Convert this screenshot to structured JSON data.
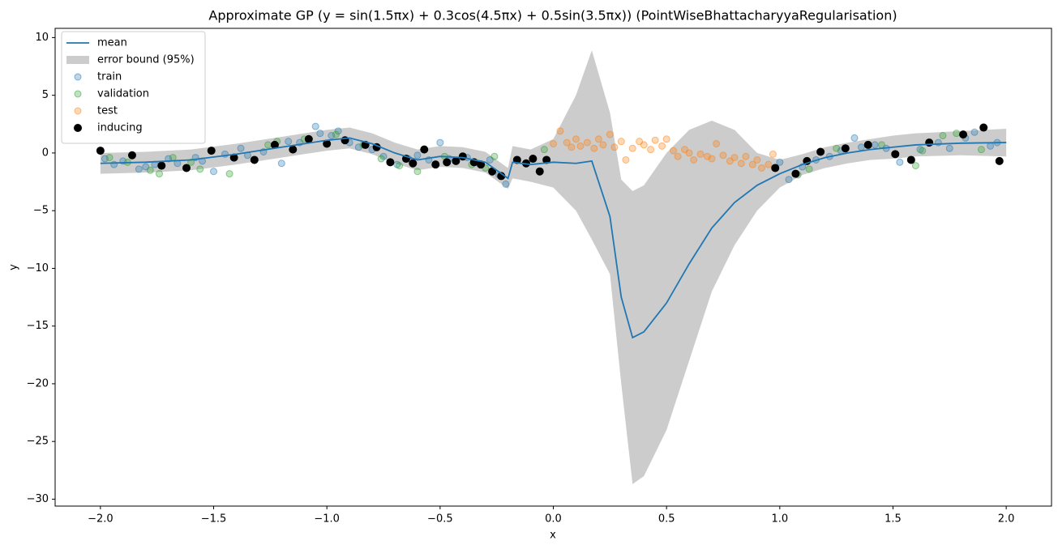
{
  "chart_data": {
    "type": "line",
    "title": "Approximate GP (y = sin(1.5πx) + 0.3cos(4.5πx) + 0.5sin(3.5πx)) (PointWiseBhattacharyyaRegularisation)",
    "x_label": "x",
    "y_label": "y",
    "xlim": [
      -2.2,
      2.2
    ],
    "ylim": [
      -30.6,
      10.8
    ],
    "xticks": [
      {
        "value": -2,
        "label": "−2.0"
      },
      {
        "value": -1.5,
        "label": "−1.5"
      },
      {
        "value": -1,
        "label": "−1.0"
      },
      {
        "value": -0.5,
        "label": "−0.5"
      },
      {
        "value": 0,
        "label": "0.0"
      },
      0.5,
      {
        "value": 1,
        "label": "1.0"
      },
      1.5,
      {
        "value": 2,
        "label": "2.0"
      }
    ],
    "yticks": [
      10,
      5,
      0,
      {
        "value": -5,
        "label": "−5"
      },
      {
        "value": -10,
        "label": "−10"
      },
      {
        "value": -15,
        "label": "−15"
      },
      {
        "value": -20,
        "label": "−20"
      },
      {
        "value": -25,
        "label": "−25"
      },
      {
        "value": -30,
        "label": "−30"
      }
    ],
    "grid": false,
    "legend": "upper left",
    "series": [
      {
        "name": "mean",
        "type": "line",
        "color": "#1f77b4",
        "x": [
          -2,
          -1.8,
          -1.6,
          -1.4,
          -1.2,
          -1.0,
          -0.9,
          -0.8,
          -0.7,
          -0.6,
          -0.5,
          -0.4,
          -0.3,
          -0.2,
          -0.18,
          -0.1,
          0,
          0.1,
          0.17,
          0.25,
          0.3,
          0.35,
          0.4,
          0.5,
          0.6,
          0.7,
          0.8,
          0.9,
          1.0,
          1.1,
          1.2,
          1.3,
          1.4,
          1.5,
          1.6,
          1.8,
          2.0
        ],
        "values": [
          -0.9,
          -0.8,
          -0.6,
          -0.1,
          0.5,
          1.1,
          1.3,
          0.8,
          0.0,
          -0.6,
          -0.3,
          -0.4,
          -0.8,
          -2.2,
          -0.8,
          -1.0,
          -0.8,
          -0.9,
          -0.7,
          -5.5,
          -12.5,
          -16,
          -15.5,
          -13,
          -9.6,
          -6.5,
          -4.3,
          -2.8,
          -1.8,
          -1.0,
          -0.4,
          0,
          0.3,
          0.5,
          0.7,
          0.85,
          0.9
        ]
      },
      {
        "name": "error bound (95%)",
        "type": "band",
        "color": "#cccccc",
        "x": [
          -2,
          -1.8,
          -1.6,
          -1.4,
          -1.2,
          -1.0,
          -0.9,
          -0.8,
          -0.7,
          -0.6,
          -0.5,
          -0.4,
          -0.3,
          -0.2,
          -0.18,
          -0.1,
          0,
          0.1,
          0.17,
          0.25,
          0.3,
          0.35,
          0.4,
          0.5,
          0.6,
          0.7,
          0.8,
          0.9,
          1.0,
          1.1,
          1.2,
          1.3,
          1.4,
          1.5,
          1.6,
          1.8,
          2.0
        ],
        "upper": [
          0.0,
          0.1,
          0.3,
          0.8,
          1.4,
          2.0,
          2.2,
          1.7,
          0.9,
          0.3,
          0.6,
          0.5,
          0.1,
          -1.3,
          0.6,
          0.3,
          1.2,
          5,
          8.9,
          3.5,
          -2.3,
          -3.3,
          -2.8,
          0,
          2,
          2.8,
          2,
          0,
          -0.6,
          -0.1,
          0.5,
          0.9,
          1.2,
          1.5,
          1.7,
          1.9,
          2.1
        ],
        "lower": [
          -1.8,
          -1.7,
          -1.5,
          -1.0,
          -0.4,
          0.2,
          0.4,
          -0.1,
          -0.9,
          -1.5,
          -1.2,
          -1.3,
          -1.7,
          -3.1,
          -2.2,
          -2.5,
          -3,
          -5,
          -7.5,
          -10.5,
          -20,
          -28.7,
          -28,
          -24,
          -18,
          -12,
          -8,
          -5,
          -3,
          -1.9,
          -1.3,
          -0.9,
          -0.6,
          -0.5,
          -0.3,
          -0.2,
          -0.3
        ]
      },
      {
        "name": "train",
        "type": "scatter",
        "color": "#1f77b4",
        "x": [
          -1.98,
          -1.94,
          -1.9,
          -1.83,
          -1.8,
          -1.76,
          -1.7,
          -1.66,
          -1.58,
          -1.55,
          -1.5,
          -1.45,
          -1.38,
          -1.35,
          -1.28,
          -1.2,
          -1.17,
          -1.12,
          -1.05,
          -1.03,
          -0.98,
          -0.95,
          -0.9,
          -0.86,
          -0.8,
          -0.75,
          -0.69,
          -0.64,
          -0.6,
          -0.55,
          -0.5,
          -0.46,
          -0.38,
          -0.33,
          -0.28,
          -0.24,
          -0.21,
          1.0,
          1.04,
          1.1,
          1.16,
          1.22,
          1.27,
          1.33,
          1.36,
          1.42,
          1.47,
          1.53,
          1.62,
          1.7,
          1.75,
          1.82,
          1.86,
          1.93,
          1.96
        ],
        "values": [
          -0.5,
          -1.0,
          -0.7,
          -1.4,
          -1.2,
          -1.0,
          -0.5,
          -0.9,
          -0.4,
          -0.7,
          -1.6,
          -0.1,
          0.4,
          -0.2,
          0.1,
          -0.9,
          1.0,
          0.9,
          2.3,
          1.7,
          1.5,
          1.9,
          0.9,
          0.5,
          0.3,
          -0.3,
          -1.0,
          -0.5,
          -0.2,
          -0.6,
          0.9,
          -0.5,
          -0.4,
          -0.9,
          -0.6,
          -1.9,
          -2.7,
          -0.8,
          -2.3,
          -1.2,
          -0.6,
          -0.3,
          0.2,
          1.3,
          0.5,
          0.7,
          0.4,
          -0.8,
          0.3,
          0.9,
          0.4,
          1.3,
          1.8,
          0.6,
          0.9
        ]
      },
      {
        "name": "validation",
        "type": "scatter",
        "color": "#2ca02c",
        "x": [
          -1.96,
          -1.88,
          -1.78,
          -1.74,
          -1.68,
          -1.6,
          -1.56,
          -1.43,
          -1.26,
          -1.22,
          -1.1,
          -0.96,
          -0.84,
          -0.76,
          -0.68,
          -0.6,
          -0.48,
          -0.36,
          -0.3,
          -0.26,
          -0.04,
          1.08,
          1.13,
          1.25,
          1.45,
          1.6,
          1.63,
          1.72,
          1.78,
          1.89
        ],
        "values": [
          -0.4,
          -0.8,
          -1.5,
          -1.8,
          -0.4,
          -0.8,
          -1.4,
          -1.8,
          0.7,
          1.0,
          1.2,
          1.6,
          0.7,
          -0.5,
          -1.1,
          -1.6,
          -0.3,
          -1.0,
          -1.3,
          -0.3,
          0.3,
          -1.9,
          -1.4,
          0.4,
          0.7,
          -1.1,
          0.2,
          1.5,
          1.7,
          0.3
        ]
      },
      {
        "name": "test",
        "type": "scatter",
        "color": "#ff7f0e",
        "x": [
          0.0,
          0.03,
          0.06,
          0.08,
          0.1,
          0.12,
          0.15,
          0.18,
          0.2,
          0.22,
          0.25,
          0.27,
          0.3,
          0.32,
          0.35,
          0.38,
          0.4,
          0.43,
          0.45,
          0.48,
          0.5,
          0.53,
          0.55,
          0.58,
          0.6,
          0.62,
          0.65,
          0.68,
          0.7,
          0.72,
          0.75,
          0.78,
          0.8,
          0.83,
          0.85,
          0.88,
          0.9,
          0.92,
          0.95,
          0.97
        ],
        "values": [
          0.8,
          1.9,
          0.9,
          0.5,
          1.2,
          0.6,
          0.9,
          0.4,
          1.2,
          0.7,
          1.6,
          0.5,
          1.0,
          -0.6,
          0.4,
          1.0,
          0.7,
          0.3,
          1.1,
          0.6,
          1.2,
          0.2,
          -0.3,
          0.3,
          0.0,
          -0.6,
          -0.1,
          -0.3,
          -0.5,
          0.8,
          -0.2,
          -0.7,
          -0.4,
          -0.9,
          -0.3,
          -1.0,
          -0.6,
          -1.3,
          -1.0,
          -0.1
        ]
      },
      {
        "name": "inducing",
        "type": "scatter",
        "color": "#000000",
        "x": [
          -2.0,
          -1.86,
          -1.73,
          -1.62,
          -1.51,
          -1.41,
          -1.32,
          -1.23,
          -1.15,
          -1.08,
          -1.0,
          -0.92,
          -0.83,
          -0.78,
          -0.72,
          -0.65,
          -0.62,
          -0.57,
          -0.52,
          -0.47,
          -0.43,
          -0.4,
          -0.35,
          -0.32,
          -0.27,
          -0.23,
          -0.16,
          -0.12,
          -0.09,
          -0.06,
          -0.03,
          0.98,
          1.07,
          1.12,
          1.18,
          1.29,
          1.39,
          1.51,
          1.58,
          1.66,
          1.81,
          1.9,
          1.97
        ],
        "values": [
          0.2,
          -0.2,
          -1.1,
          -1.3,
          0.2,
          -0.4,
          -0.6,
          0.7,
          0.3,
          1.2,
          0.8,
          1.1,
          0.7,
          0.5,
          -0.8,
          -0.5,
          -0.9,
          0.3,
          -1.0,
          -0.8,
          -0.7,
          -0.3,
          -0.8,
          -1.0,
          -1.6,
          -2.0,
          -0.6,
          -0.9,
          -0.5,
          -1.6,
          -0.6,
          -1.3,
          -1.8,
          -0.7,
          0.1,
          0.4,
          0.7,
          -0.1,
          -0.6,
          0.9,
          1.6,
          2.2,
          -0.7
        ]
      }
    ]
  }
}
